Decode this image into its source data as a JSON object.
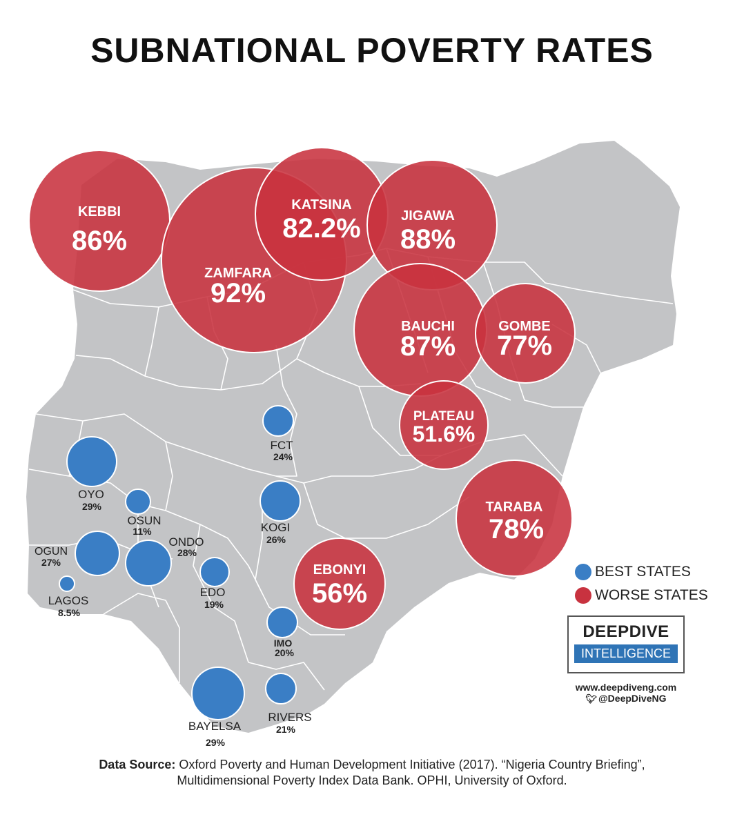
{
  "title": "SUBNATIONAL POVERTY RATES",
  "colors": {
    "worse": "#c8323f",
    "best": "#3a7ec5",
    "land": "#c3c4c6",
    "border": "#ffffff"
  },
  "worse_states": [
    {
      "name": "KEBBI",
      "value": "86%"
    },
    {
      "name": "ZAMFARA",
      "value": "92%"
    },
    {
      "name": "KATSINA",
      "value": "82.2%"
    },
    {
      "name": "JIGAWA",
      "value": "88%"
    },
    {
      "name": "BAUCHI",
      "value": "87%"
    },
    {
      "name": "GOMBE",
      "value": "77%"
    },
    {
      "name": "PLATEAU",
      "value": "51.6%"
    },
    {
      "name": "TARABA",
      "value": "78%"
    },
    {
      "name": "EBONYI",
      "value": "56%"
    }
  ],
  "best_states": [
    {
      "name": "FCT",
      "value": "24%"
    },
    {
      "name": "OYO",
      "value": "29%"
    },
    {
      "name": "OSUN",
      "value": "11%"
    },
    {
      "name": "KOGI",
      "value": "26%"
    },
    {
      "name": "OGUN",
      "value": "27%"
    },
    {
      "name": "ONDO",
      "value": "28%"
    },
    {
      "name": "EDO",
      "value": "19%"
    },
    {
      "name": "LAGOS",
      "value": "8.5%"
    },
    {
      "name": "IMO",
      "value": "20%"
    },
    {
      "name": "BAYELSA",
      "value": "29%"
    },
    {
      "name": "RIVERS",
      "value": "21%"
    }
  ],
  "legend": {
    "best": "BEST STATES",
    "worse": "WORSE STATES"
  },
  "brand": {
    "top": "DEEPDIVE",
    "bottom": "INTELLIGENCE",
    "website": "www.deepdiveng.com",
    "twitter": "@DeepDiveNG"
  },
  "source": {
    "label": "Data Source:",
    "line1": "Oxford Poverty and Human Development Initiative (2017). “Nigeria Country Briefing”,",
    "line2": "Multidimensional Poverty Index Data Bank. OPHI, University of Oxford."
  }
}
